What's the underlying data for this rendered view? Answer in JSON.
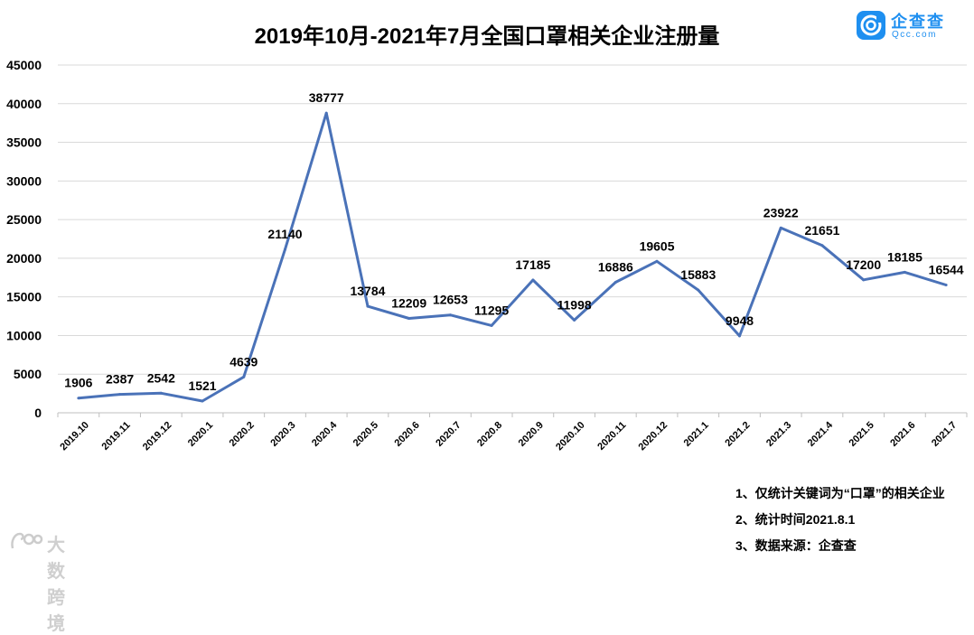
{
  "brand": {
    "name": "企查查",
    "domain": "Qcc.com",
    "color": "#1e8ff0"
  },
  "chart_data": {
    "type": "line",
    "title": "2019年10月-2021年7月全国口罩相关企业注册量",
    "xlabel": "",
    "ylabel": "",
    "ylim": [
      0,
      45000
    ],
    "yticks": [
      0,
      5000,
      10000,
      15000,
      20000,
      25000,
      30000,
      35000,
      40000,
      45000
    ],
    "grid": true,
    "legend": "none",
    "categories": [
      "2019.10",
      "2019.11",
      "2019.12",
      "2020.1",
      "2020.2",
      "2020.3",
      "2020.4",
      "2020.5",
      "2020.6",
      "2020.7",
      "2020.8",
      "2020.9",
      "2020.10",
      "2020.11",
      "2020.12",
      "2021.1",
      "2021.2",
      "2021.3",
      "2021.4",
      "2021.5",
      "2021.6",
      "2021.7"
    ],
    "series": [
      {
        "values": [
          1906,
          2387,
          2542,
          1521,
          4639,
          21140,
          38777,
          13784,
          12209,
          12653,
          11295,
          17185,
          11998,
          16886,
          19605,
          15883,
          9948,
          23922,
          21651,
          17200,
          18185,
          16544
        ],
        "color": "#4a72b8"
      }
    ]
  },
  "notes": [
    "1、仅统计关键词为“口罩”的相关企业",
    "2、统计时间2021.8.1",
    "3、数据来源：企查查"
  ],
  "watermark": {
    "text": "大数跨境"
  }
}
